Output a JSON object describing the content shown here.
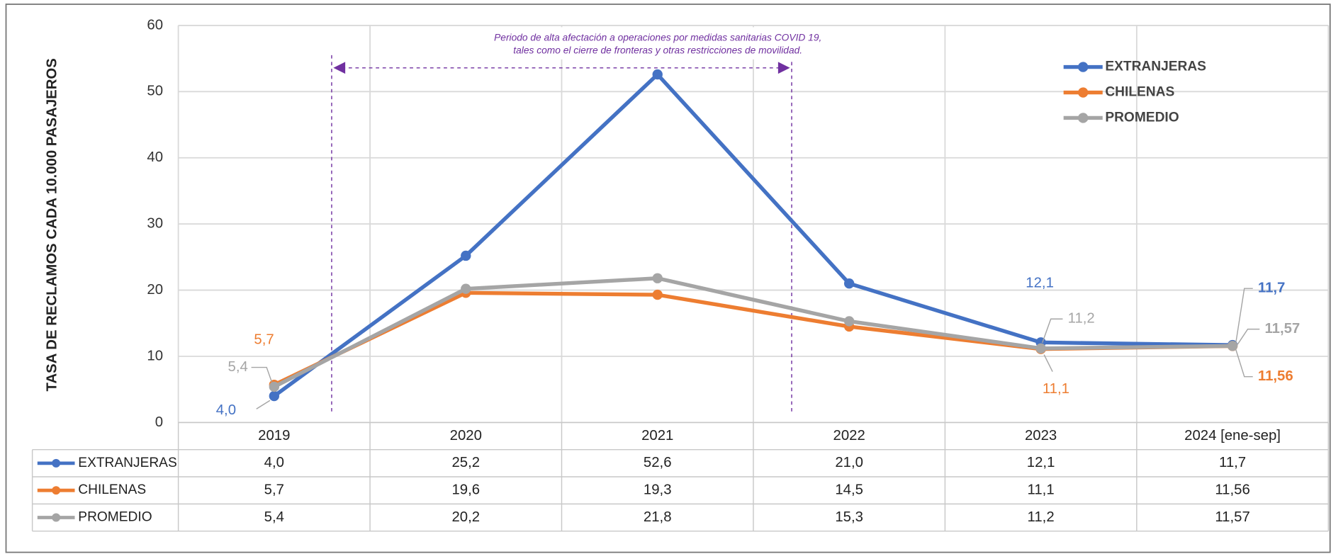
{
  "chart_data": {
    "type": "line",
    "y_label": "TASA DE RECLAMOS CADA 10.000 PASAJEROS",
    "annotation": [
      "Periodo de alta afectación a operaciones por medidas sanitarias COVID 19,",
      "tales como el cierre de fronteras y otras restricciones de movilidad."
    ],
    "categories": [
      "2019",
      "2020",
      "2021",
      "2022",
      "2023",
      "2024 [ene-sep]"
    ],
    "series": [
      {
        "name": "EXTRANJERAS",
        "color": "#4472c4",
        "values": [
          4.0,
          25.2,
          52.6,
          21.0,
          12.1,
          11.7
        ],
        "value_labels": [
          "4,0",
          "25,2",
          "52,6",
          "21,0",
          "12,1",
          "11,7"
        ]
      },
      {
        "name": "CHILENAS",
        "color": "#ed7d31",
        "values": [
          5.7,
          19.6,
          19.3,
          14.5,
          11.1,
          11.56
        ],
        "value_labels": [
          "5,7",
          "19,6",
          "19,3",
          "14,5",
          "11,1",
          "11,56"
        ]
      },
      {
        "name": "PROMEDIO",
        "color": "#a5a5a5",
        "values": [
          5.4,
          20.2,
          21.8,
          15.3,
          11.2,
          11.57
        ],
        "value_labels": [
          "5,4",
          "20,2",
          "21,8",
          "15,3",
          "11,2",
          "11,57"
        ]
      }
    ],
    "ylim": [
      0,
      60
    ],
    "yticks": [
      0,
      10,
      20,
      30,
      40,
      50,
      60
    ],
    "grid": true,
    "legend": "top-right"
  }
}
